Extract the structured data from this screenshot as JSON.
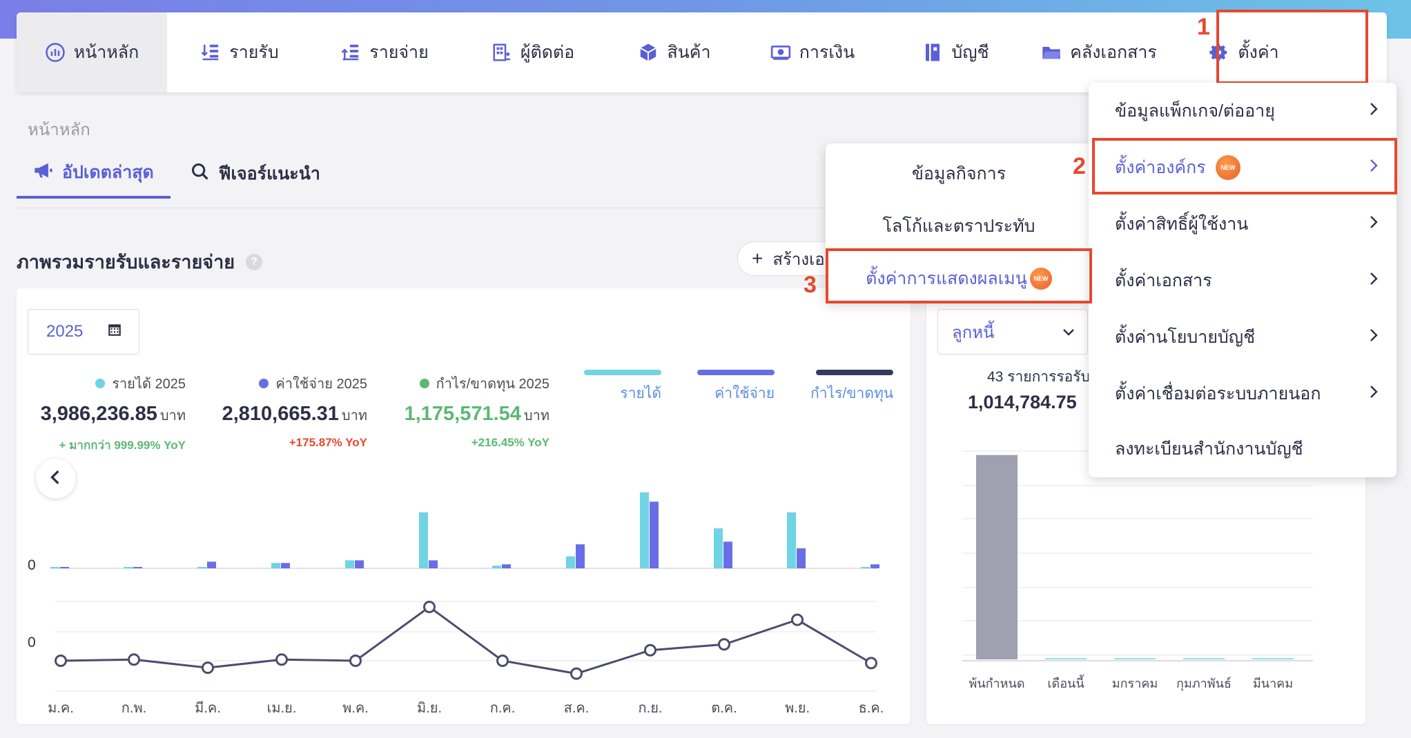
{
  "nav": {
    "items": [
      {
        "label": "หน้าหลัก",
        "icon": "dashboard-icon"
      },
      {
        "label": "รายรับ",
        "icon": "income-icon"
      },
      {
        "label": "รายจ่าย",
        "icon": "expense-icon"
      },
      {
        "label": "ผู้ติดต่อ",
        "icon": "contacts-icon"
      },
      {
        "label": "สินค้า",
        "icon": "box-icon"
      },
      {
        "label": "การเงิน",
        "icon": "money-icon"
      },
      {
        "label": "บัญชี",
        "icon": "ledger-icon"
      },
      {
        "label": "คลังเอกสาร",
        "icon": "folder-icon"
      },
      {
        "label": "ตั้งค่า",
        "icon": "gear-icon"
      }
    ]
  },
  "annotations": {
    "step1": "1",
    "step2": "2",
    "step3": "3"
  },
  "breadcrumb": "หน้าหลัก",
  "tabs": [
    {
      "label": "อัปเดตล่าสุด",
      "icon": "megaphone-icon"
    },
    {
      "label": "ฟีเจอร์แนะนำ",
      "icon": "search-icon"
    }
  ],
  "section_title": "ภาพรวมรายรับและรายจ่าย",
  "help_glyph": "?",
  "create_button": "สร้างเอกสาร",
  "year_picker": {
    "value": "2025"
  },
  "stats": [
    {
      "label": "รายได้ 2025",
      "value": "3,986,236.85",
      "unit": "บาท",
      "yoy": "+ มากกว่า 999.99% YoY",
      "dot_color": "#6fd4e4",
      "yoy_color": "#5cb873"
    },
    {
      "label": "ค่าใช้จ่าย 2025",
      "value": "2,810,665.31",
      "unit": "บาท",
      "yoy": "+175.87% YoY",
      "dot_color": "#6a6ee6",
      "yoy_color": "#e5492d"
    },
    {
      "label": "กำไร/ขาดทุน 2025",
      "value": "1,175,571.54",
      "unit": "บาท",
      "yoy": "+216.45% YoY",
      "dot_color": "#5cb873",
      "yoy_color": "#5cb873"
    }
  ],
  "legend": [
    {
      "label": "รายได้",
      "color": "#6fd4e4"
    },
    {
      "label": "ค่าใช้จ่าย",
      "color": "#6a6ee6"
    },
    {
      "label": "กำไร/ขาดทุน",
      "color": "#363a5c"
    }
  ],
  "chart_data": [
    {
      "type": "bar",
      "categories": [
        "ม.ค.",
        "ก.พ.",
        "มี.ค.",
        "เม.ย.",
        "พ.ค.",
        "มิ.ย.",
        "ก.ค.",
        "ส.ค.",
        "ก.ย.",
        "ต.ค.",
        "พ.ย.",
        "ธ.ค."
      ],
      "y_tick_label": "0",
      "series": [
        {
          "name": "รายได้",
          "values": [
            1,
            1,
            1,
            4,
            6,
            42,
            2,
            9,
            57,
            30,
            42,
            1
          ]
        },
        {
          "name": "ค่าใช้จ่าย",
          "values": [
            1,
            1,
            5,
            4,
            6,
            6,
            3,
            18,
            50,
            20,
            15,
            3
          ]
        }
      ],
      "ylim": [
        0,
        60
      ]
    },
    {
      "type": "line",
      "categories": [
        "ม.ค.",
        "ก.พ.",
        "มี.ค.",
        "เม.ย.",
        "พ.ค.",
        "มิ.ย.",
        "ก.ค.",
        "ส.ค.",
        "ก.ย.",
        "ต.ค.",
        "พ.ย.",
        "ธ.ค."
      ],
      "y_tick_label": "0",
      "series": [
        {
          "name": "กำไร/ขาดทุน",
          "values": [
            0,
            1,
            -6,
            1,
            0,
            46,
            0,
            -11,
            9,
            14,
            35,
            -2
          ]
        }
      ],
      "ylim": [
        -20,
        60
      ]
    },
    {
      "type": "bar",
      "categories": [
        "พ้นกำหนด",
        "เดือนนี้",
        "มกราคม",
        "กุมภาพันธ์",
        "มีนาคม"
      ],
      "series": [
        {
          "values": [
            1000,
            2,
            1,
            1,
            1
          ]
        }
      ],
      "ylim": [
        0,
        1080
      ]
    }
  ],
  "side": {
    "select_value": "ลูกหนี้",
    "count_text": "43 รายการรอรับ",
    "amount": "1,014,784.75"
  },
  "menu": {
    "items": [
      {
        "label": "ข้อมูลแพ็กเกจ/ต่ออายุ",
        "chevron": true,
        "new": false
      },
      {
        "label": "ตั้งค่าองค์กร",
        "chevron": true,
        "new": true
      },
      {
        "label": "ตั้งค่าสิทธิ์ผู้ใช้งาน",
        "chevron": true,
        "new": false
      },
      {
        "label": "ตั้งค่าเอกสาร",
        "chevron": true,
        "new": false
      },
      {
        "label": "ตั้งค่านโยบายบัญชี",
        "chevron": true,
        "new": false
      },
      {
        "label": "ตั้งค่าเชื่อมต่อระบบภายนอก",
        "chevron": true,
        "new": false
      },
      {
        "label": "ลงทะเบียนสำนักงานบัญชี",
        "chevron": false,
        "new": false
      }
    ],
    "new_badge": "NEW"
  },
  "submenu": {
    "items": [
      {
        "label": "ข้อมูลกิจการ",
        "new": false
      },
      {
        "label": "โลโก้และตราประทับ",
        "new": false
      },
      {
        "label": "ตั้งค่าการแสดงผลเมนู",
        "new": true
      }
    ]
  }
}
